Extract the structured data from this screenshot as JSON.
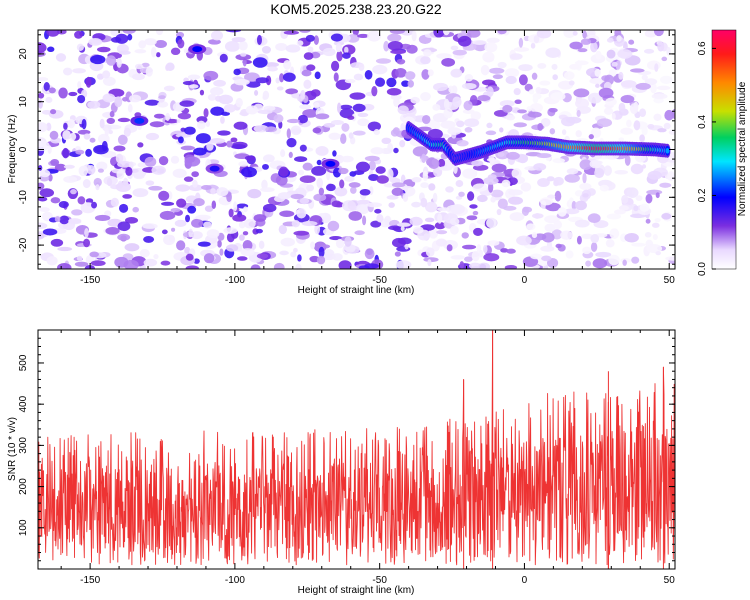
{
  "title": "KOM5.2025.238.23.20.G22",
  "chart_data": [
    {
      "type": "heatmap",
      "name": "spectrogram",
      "xlabel": "Height of straight line (km)",
      "ylabel": "Frequency (Hz)",
      "xlim": [
        -168,
        52
      ],
      "ylim": [
        -25,
        25
      ],
      "xticks": [
        "-150",
        "-100",
        "-50",
        "0",
        "50"
      ],
      "xtick_values": [
        -150,
        -100,
        -50,
        0,
        50
      ],
      "yticks": [
        "-20",
        "-10",
        "0",
        "10",
        "20"
      ],
      "ytick_values": [
        -20,
        -10,
        0,
        10,
        20
      ],
      "colorbar": {
        "label": "Normalized spectral amplitude",
        "range": [
          0.0,
          0.65
        ],
        "ticks": [
          "0.0",
          "0.2",
          "0.4",
          "0.6"
        ],
        "tick_values": [
          0.0,
          0.2,
          0.4,
          0.6
        ]
      },
      "signal_track": [
        {
          "x": -40,
          "f": 4.5,
          "amp": 0.22
        },
        {
          "x": -32,
          "f": 1.0,
          "amp": 0.3
        },
        {
          "x": -28,
          "f": 1.0,
          "amp": 0.34
        },
        {
          "x": -24,
          "f": -2.0,
          "amp": 0.12
        },
        {
          "x": -15,
          "f": -0.5,
          "amp": 0.24
        },
        {
          "x": -6,
          "f": 1.5,
          "amp": 0.3
        },
        {
          "x": 0,
          "f": 1.5,
          "amp": 0.36
        },
        {
          "x": 8,
          "f": 1.2,
          "amp": 0.42
        },
        {
          "x": 15,
          "f": 0.5,
          "amp": 0.5
        },
        {
          "x": 25,
          "f": 0.2,
          "amp": 0.62
        },
        {
          "x": 35,
          "f": 0.2,
          "amp": 0.52
        },
        {
          "x": 45,
          "f": 0.0,
          "amp": 0.32
        },
        {
          "x": 50,
          "f": -0.3,
          "amp": 0.25
        }
      ],
      "background_level": 0.08,
      "noise_blobs": [
        {
          "x": -133,
          "f": 6,
          "amp": 0.22
        },
        {
          "x": -113,
          "f": 21,
          "amp": 0.2
        },
        {
          "x": -107,
          "f": -4,
          "amp": 0.18
        },
        {
          "x": -67,
          "f": -3,
          "amp": 0.2
        }
      ]
    },
    {
      "type": "line",
      "name": "snr",
      "xlabel": "Height of straight line (km)",
      "ylabel": "SNR (10 * v/v)",
      "xlim": [
        -168,
        52
      ],
      "ylim": [
        0,
        580
      ],
      "xticks": [
        "-150",
        "-100",
        "-50",
        "0",
        "50"
      ],
      "xtick_values": [
        -150,
        -100,
        -50,
        0,
        50
      ],
      "yticks": [
        "100",
        "200",
        "300",
        "400",
        "500"
      ],
      "ytick_values": [
        100,
        200,
        300,
        400,
        500
      ],
      "series": [
        {
          "name": "SNR",
          "color": "#ee3333",
          "baseline": [
            [
              -168,
              120
            ],
            [
              -60,
              125
            ],
            [
              -20,
              140
            ],
            [
              0,
              160
            ],
            [
              52,
              175
            ]
          ],
          "peak": [
            [
              -168,
              330
            ],
            [
              -60,
              340
            ],
            [
              -20,
              370
            ],
            [
              0,
              420
            ],
            [
              52,
              460
            ]
          ],
          "notable_peaks": [
            {
              "x": -11,
              "y": 580
            },
            {
              "x": -21,
              "y": 460
            },
            {
              "x": 29,
              "y": 480
            },
            {
              "x": 48,
              "y": 490
            },
            {
              "x": 29,
              "y": 405
            }
          ]
        }
      ]
    }
  ]
}
